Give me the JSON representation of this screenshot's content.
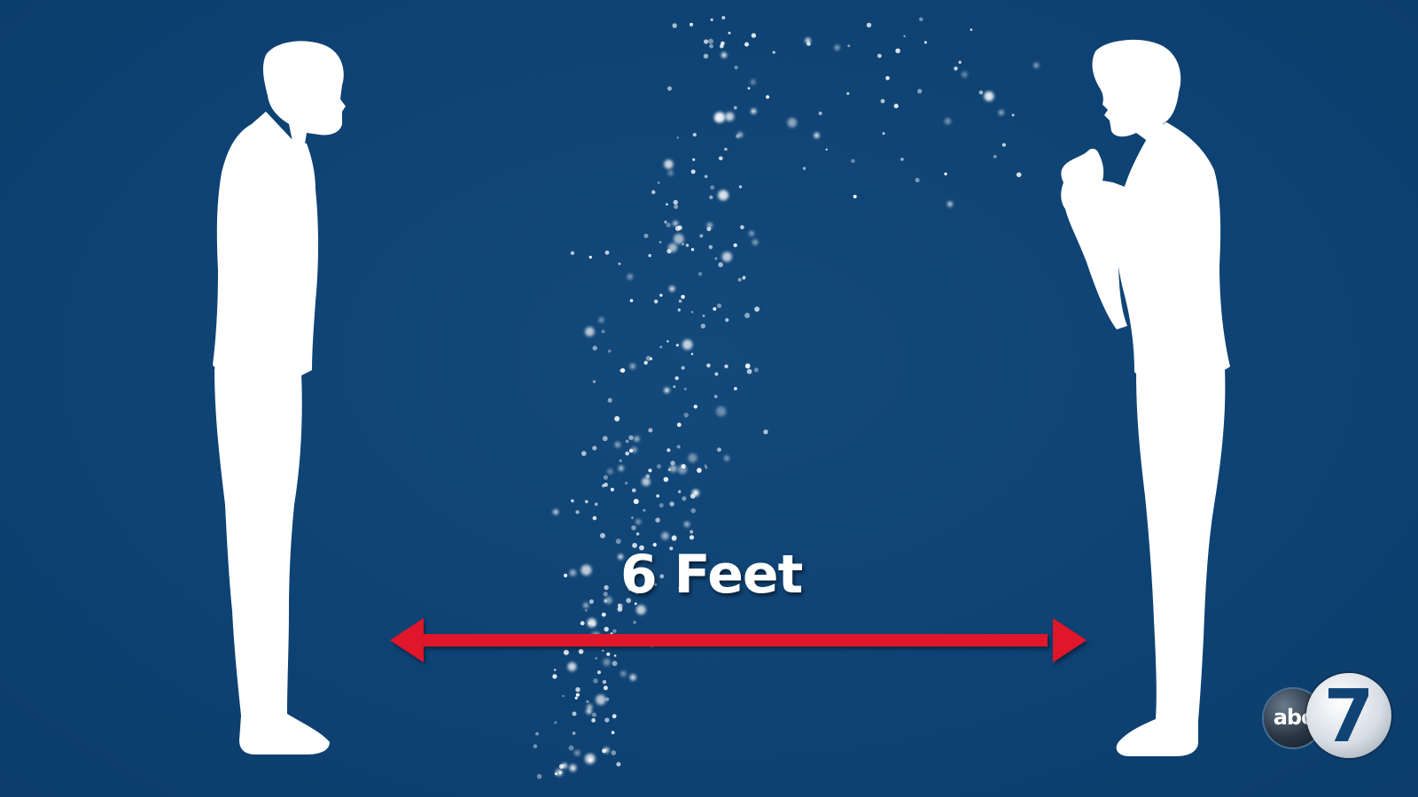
{
  "graphic": {
    "distance_label": "6 Feet",
    "colors": {
      "background": "#0f4475",
      "silhouette": "#ffffff",
      "arrow": "#e0162b",
      "droplets": "#ffffff"
    }
  },
  "logo": {
    "network": "abc",
    "channel": "7"
  }
}
